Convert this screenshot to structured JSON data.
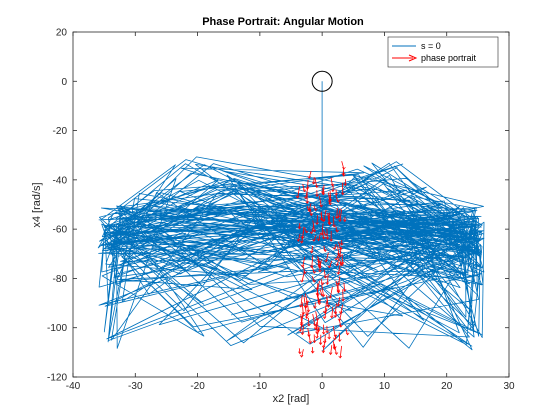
{
  "chart_data": {
    "type": "line",
    "title": "Phase Portrait: Angular Motion",
    "xlabel": "x2 [rad]",
    "ylabel": "x4 [rad/s]",
    "xlim": [
      -40,
      30
    ],
    "ylim": [
      -120,
      20
    ],
    "xticks": [
      -40,
      -30,
      -20,
      -10,
      0,
      10,
      20,
      30
    ],
    "yticks": [
      20,
      0,
      -20,
      -40,
      -60,
      -80,
      -100,
      -120
    ],
    "legend_position": "top-right",
    "series": [
      {
        "name": "s = 0",
        "style": "solid",
        "color": "#0072BD",
        "description": "trajectory oscillating between roughly x2 = -36..26 and x4 = -112..-30, starting near (0, 0)"
      },
      {
        "name": "phase portrait",
        "style": "quiver",
        "color": "#FF0000",
        "description": "vector arrows concentrated near x2 = -4..4, x4 = -110..-30"
      }
    ],
    "annotations": [
      {
        "type": "circle",
        "center": [
          0,
          0
        ],
        "radius_data_x": 1.6
      }
    ]
  },
  "colors": {
    "series_blue": "#0072BD",
    "quiver_red": "#FF0000",
    "axis": "#262626"
  }
}
